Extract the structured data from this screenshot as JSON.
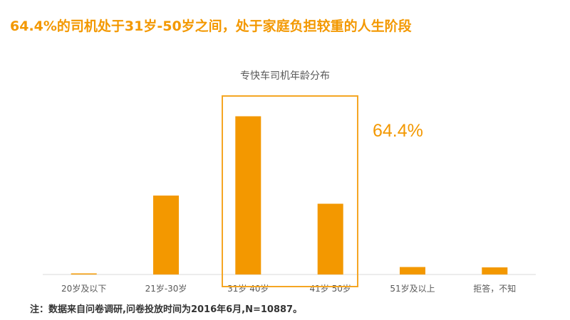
{
  "headline": "64.4%的司机处于31岁-50岁之间，处于家庭负担较重的人生阶段",
  "footnote": "注：数据来自问卷调研,问卷投放时间为2016年6月,N=10887。",
  "colors": {
    "accent": "#F39800",
    "bar": "#F39800",
    "axis": "#D9D9D9",
    "text": "#595959"
  },
  "chart_data": {
    "type": "bar",
    "title": "专快车司机年龄分布",
    "categories": [
      "20岁及以下",
      "21岁-30岁",
      "31岁 40岁",
      "41岁 50岁",
      "51岁及以上",
      "拒答，不知"
    ],
    "values": [
      0.2,
      22.2,
      44.5,
      19.9,
      2.1,
      2.0
    ],
    "ylim": [
      0,
      50
    ],
    "xlabel": "",
    "ylabel": "",
    "grid": false,
    "legend": "none",
    "annotations": [
      {
        "text": "64.4%",
        "categories": [
          "31岁 40岁",
          "41岁 50岁"
        ]
      }
    ]
  }
}
